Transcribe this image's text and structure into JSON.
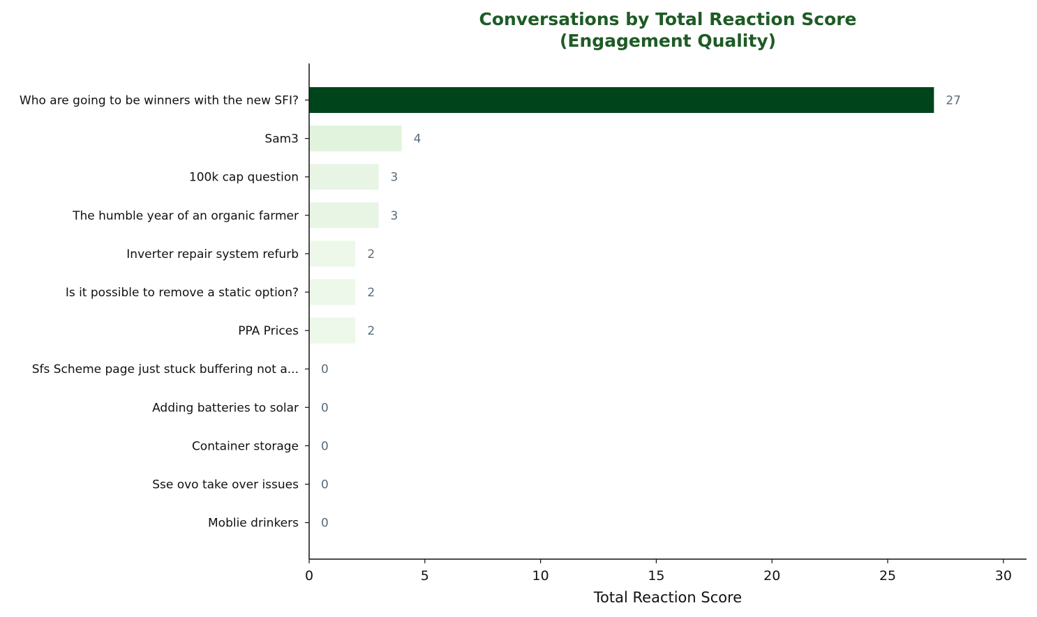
{
  "chart_data": {
    "type": "bar",
    "orientation": "horizontal",
    "title_lines": [
      "Conversations by Total Reaction Score",
      "(Engagement Quality)"
    ],
    "xlabel": "Total Reaction Score",
    "ylabel": "",
    "xlim": [
      0,
      31
    ],
    "x_ticks": [
      0,
      5,
      10,
      15,
      20,
      25,
      30
    ],
    "grid": false,
    "legend": "none",
    "categories": [
      "Who are going to be winners with the new SFI?",
      "Sam3",
      "100k cap question",
      "The humble year of an organic farmer",
      "Inverter repair system refurb",
      "Is it possible to remove a static option?",
      "PPA Prices",
      "Sfs Scheme page just stuck buffering not a...",
      "Adding batteries to solar",
      "Container storage",
      "Sse ovo take over issues",
      "Moblie drinkers"
    ],
    "values": [
      27,
      4,
      3,
      3,
      2,
      2,
      2,
      0,
      0,
      0,
      0,
      0
    ],
    "bar_colors": [
      "#00441b",
      "#e1f3dc",
      "#e8f5e4",
      "#e8f5e4",
      "#eef8ea",
      "#eef8ea",
      "#eef8ea",
      "#f7fcf5",
      "#f7fcf5",
      "#f7fcf5",
      "#f7fcf5",
      "#f7fcf5"
    ],
    "title_color": "#1e5b25",
    "value_label_color": "#5a6b7a"
  }
}
